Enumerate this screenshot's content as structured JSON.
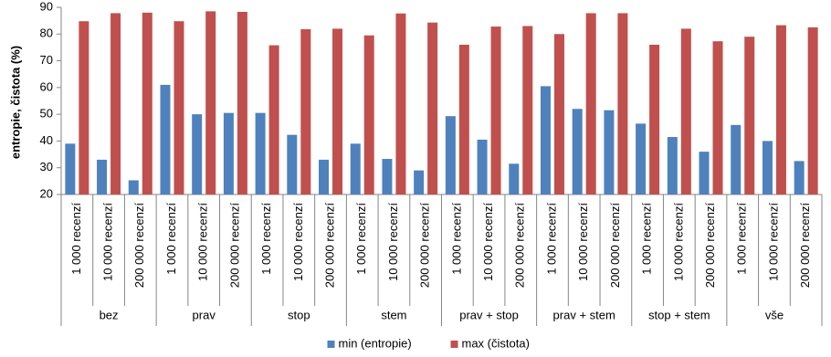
{
  "chart_data": {
    "type": "bar",
    "y_label": "entropie, čistota (%)",
    "categories": [
      "1 000 recenzí",
      "10 000 recenzí",
      "200 000 recenzí",
      "1 000 recenzí",
      "10 000 recenzí",
      "200 000 recenzí",
      "1 000 recenzí",
      "10 000 recenzí",
      "200 000 recenzí",
      "1 000 recenzí",
      "10 000 recenzí",
      "200 000 recenzí",
      "1 000 recenzí",
      "10 000 recenzí",
      "200 000 recenzí",
      "1 000 recenzí",
      "10 000 recenzí",
      "200 000 recenzí",
      "1 000 recenzí",
      "10 000 recenzí",
      "200 000 recenzí",
      "1 000 recenzí",
      "10 000 recenzí",
      "200 000 recenzí"
    ],
    "category_groups": [
      "bez",
      "prav",
      "stop",
      "stem",
      "prav + stop",
      "prav + stem",
      "stop + stem",
      "vše"
    ],
    "series": [
      {
        "name": "min (entropie)",
        "color": "#4f81bd",
        "values": [
          39,
          33,
          25.3,
          61,
          50,
          50.5,
          50.5,
          42.3,
          33,
          39,
          33.3,
          29,
          49.3,
          40.5,
          31.5,
          60.5,
          52,
          51.5,
          46.5,
          41.5,
          36,
          46,
          40,
          32.5
        ]
      },
      {
        "name": "max (čistota)",
        "color": "#c0504d",
        "values": [
          84.8,
          87.8,
          88,
          84.8,
          88.5,
          88.3,
          75.8,
          81.8,
          82,
          79.5,
          87.7,
          84.3,
          76,
          82.8,
          83,
          80,
          87.8,
          87.8,
          76,
          82,
          77.3,
          79,
          83.3,
          82.5
        ]
      }
    ],
    "ylim": [
      20,
      90
    ],
    "yticks": [
      20,
      30,
      40,
      50,
      60,
      70,
      80,
      90
    ],
    "grid": false,
    "legend": "bottom"
  }
}
